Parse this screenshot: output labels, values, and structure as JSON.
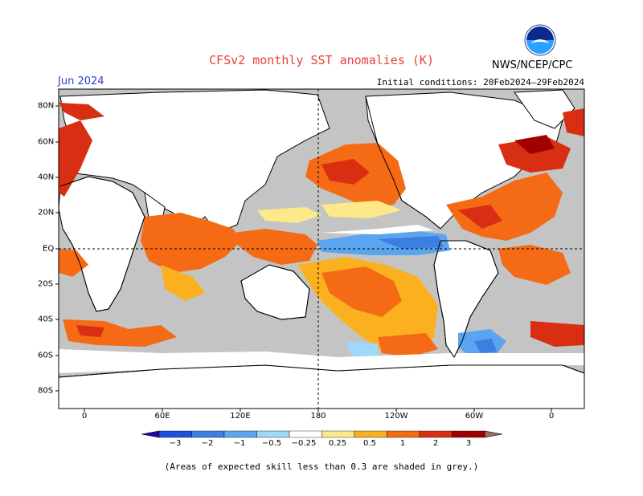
{
  "header": {
    "title": "CFSv2 monthly SST anomalies (K)",
    "agency": "NWS/NCEP/CPC",
    "month": "Jun 2024",
    "initial_conditions": "Initial conditions: 20Feb2024–29Feb2024",
    "logo_text": "NOAA",
    "logo_icon": "noaa-logo-icon"
  },
  "axes": {
    "lat_labels": [
      "80N",
      "60N",
      "40N",
      "20N",
      "EQ",
      "20S",
      "40S",
      "60S",
      "80S"
    ],
    "lon_labels": [
      "0",
      "60E",
      "120E",
      "180",
      "120W",
      "60W",
      "0"
    ]
  },
  "colorbar": {
    "labels": [
      "−3",
      "−2",
      "−1",
      "−0.5",
      "−0.25",
      "0.25",
      "0.5",
      "1",
      "2",
      "3"
    ],
    "colors": [
      "#2a00b0",
      "#1f4ee0",
      "#3b7fe0",
      "#5aa5f0",
      "#9fd8f8",
      "#ffffff",
      "#fde88a",
      "#fbb11f",
      "#f56a14",
      "#d82e12",
      "#a00000",
      "#9a6a5c"
    ]
  },
  "map_colors": {
    "ocean_grey": "#c4c4c4",
    "land": "#ffffff",
    "coast": "#000000"
  },
  "footnote": "(Areas of expected skill less than 0.3 are shaded in grey.)"
}
